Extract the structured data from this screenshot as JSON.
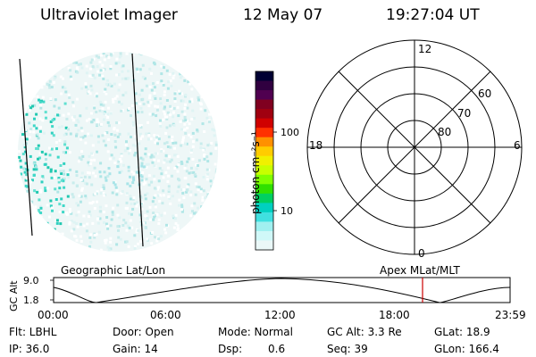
{
  "header": {
    "instrument": "Ultraviolet Imager",
    "date": "12 May 07",
    "time": "19:27:04 UT"
  },
  "colorbar": {
    "label": "photon cm⁻²s⁻¹",
    "ticks": [
      "100",
      "10"
    ],
    "colors": [
      "#000033",
      "#300040",
      "#500050",
      "#800020",
      "#a00010",
      "#d00000",
      "#ff3000",
      "#ff9000",
      "#ffcc00",
      "#f0f000",
      "#c8ff00",
      "#80ff00",
      "#30e000",
      "#00d060",
      "#00d0c0",
      "#40e0e0",
      "#a0f0f0",
      "#d0f8f8",
      "#eaf8f8"
    ]
  },
  "polar": {
    "mlt_labels": {
      "top": "12",
      "left": "18",
      "right": "6",
      "bottom": "0"
    },
    "lat_labels": [
      "60",
      "70",
      "80"
    ]
  },
  "timeline": {
    "left_label": "Geographic Lat/Lon",
    "right_label": "Apex MLat/MLT",
    "y_axis_label": "GC Alt",
    "y_ticks": [
      "9.0",
      "1.8"
    ],
    "x_ticks": [
      "00:00",
      "06:00",
      "12:00",
      "18:00",
      "23:59"
    ],
    "marker_color": "#cc0000"
  },
  "status": {
    "filter": "Flt: LBHL",
    "door": "Door: Open",
    "mode": "Mode: Normal",
    "gc_alt": "GC Alt: 3.3 Re",
    "glat": "GLat: 18.9",
    "ip": "IP: 36.0",
    "gain": "Gain: 14",
    "dsp_label": "Dsp:",
    "dsp_value": "0.6",
    "seq": "Seq: 39",
    "glon": "GLon: 166.4"
  }
}
